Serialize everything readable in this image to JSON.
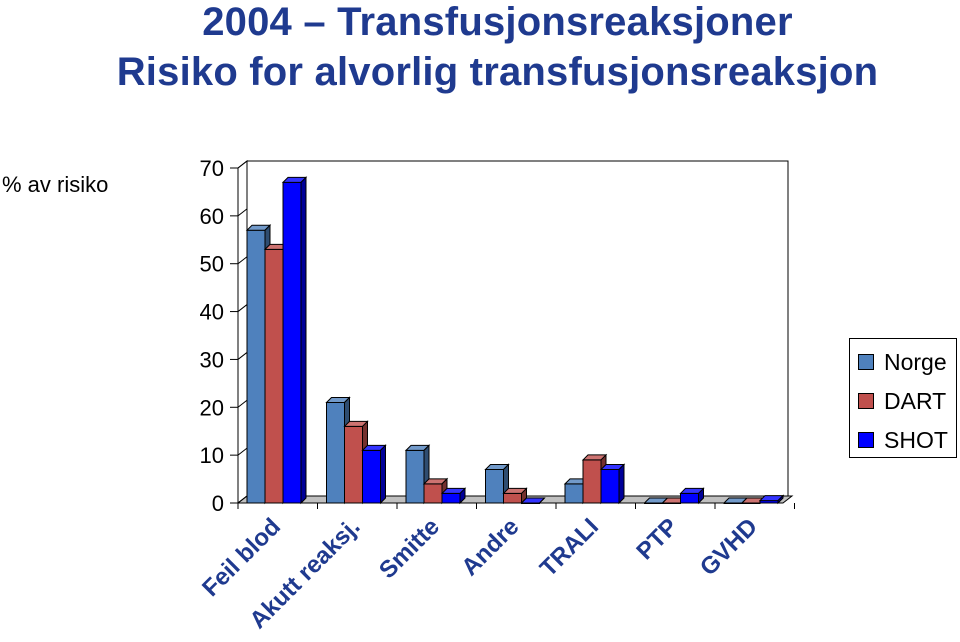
{
  "title_lines": [
    "2004 – Transfusjonsreaksjoner",
    "Risiko for alvorlig transfusjonsreaksjon"
  ],
  "chart_data": {
    "type": "bar",
    "title": "2004 – Transfusjonsreaksjoner Risiko for alvorlig transfusjonsreaksjon",
    "ylabel": "% av risiko",
    "xlabel": "",
    "ylim": [
      0,
      70
    ],
    "yticks": [
      0,
      10,
      20,
      30,
      40,
      50,
      60,
      70
    ],
    "categories": [
      "Feil blod",
      "Akutt reaksj.",
      "Smitte",
      "Andre",
      "TRALI",
      "PTP",
      "GVHD"
    ],
    "series": [
      {
        "name": "Norge",
        "color": "#4f81bd",
        "values": [
          57,
          21,
          11,
          7,
          4,
          0,
          0
        ]
      },
      {
        "name": "DART",
        "color": "#c0504d",
        "values": [
          53,
          16,
          4,
          2,
          9,
          0,
          0
        ]
      },
      {
        "name": "SHOT",
        "color": "#0000ff",
        "values": [
          67,
          11,
          2,
          0,
          7,
          2,
          0.5
        ]
      }
    ],
    "grid": false,
    "legend_position": "right",
    "style": "3d-clustered-column"
  }
}
